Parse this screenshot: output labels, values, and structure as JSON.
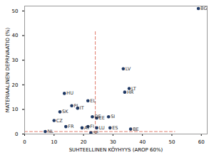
{
  "chart_data": {
    "type": "scatter",
    "x_label": "SUHTEELLINEN KÖYHYYS (AROP 60%)",
    "y_label": "MATERIAALINEN DEPRIVAATIO (%)",
    "color": "#1f3864",
    "marker": "circle",
    "data_labels": true,
    "points": [
      {
        "label": "BG",
        "x": 59,
        "y": 51
      },
      {
        "label": "LV",
        "x": 33.5,
        "y": 26.5
      },
      {
        "label": "LT",
        "x": 35.5,
        "y": 18.5
      },
      {
        "label": "HR",
        "x": 34,
        "y": 17
      },
      {
        "label": "HU",
        "x": 13.5,
        "y": 16.5
      },
      {
        "label": "EL",
        "x": 21.5,
        "y": 13.5
      },
      {
        "label": "PL",
        "x": 16,
        "y": 11.5
      },
      {
        "label": "IT",
        "x": 18,
        "y": 10.5
      },
      {
        "label": "SK",
        "x": 12,
        "y": 9
      },
      {
        "label": "CZ",
        "x": 10,
        "y": 5.5
      },
      {
        "label": "SI",
        "x": 28.5,
        "y": 7
      },
      {
        "label": "EE",
        "x": 24.5,
        "y": 6.5
      },
      {
        "label": "DE",
        "x": 23,
        "y": 7
      },
      {
        "label": "FR",
        "x": 14,
        "y": 3
      },
      {
        "label": "AT",
        "x": 19.5,
        "y": 2.5
      },
      {
        "label": "FI",
        "x": 21.5,
        "y": 3
      },
      {
        "label": "LU",
        "x": 24.5,
        "y": 2.5
      },
      {
        "label": "ES",
        "x": 29,
        "y": 2.5
      },
      {
        "label": "SE",
        "x": 22.5,
        "y": 0.5
      },
      {
        "label": "BE",
        "x": 36,
        "y": 2
      },
      {
        "label": "NL",
        "x": 7,
        "y": 1
      }
    ],
    "reference_lines": [
      {
        "x": [
          24,
          24
        ],
        "y": [
          0,
          42
        ],
        "color": "#e07a6a",
        "line_style": "dashed"
      },
      {
        "x": [
          0,
          51
        ],
        "y": [
          1,
          1
        ],
        "color": "#e07a6a",
        "line_style": "dashed"
      }
    ],
    "xlim": [
      0,
      62
    ],
    "xticks": [
      0,
      10,
      20,
      30,
      40,
      50,
      60
    ],
    "ylim": [
      0,
      52
    ],
    "yticks": [
      0,
      10,
      20,
      30,
      40,
      50
    ],
    "grid": false
  }
}
